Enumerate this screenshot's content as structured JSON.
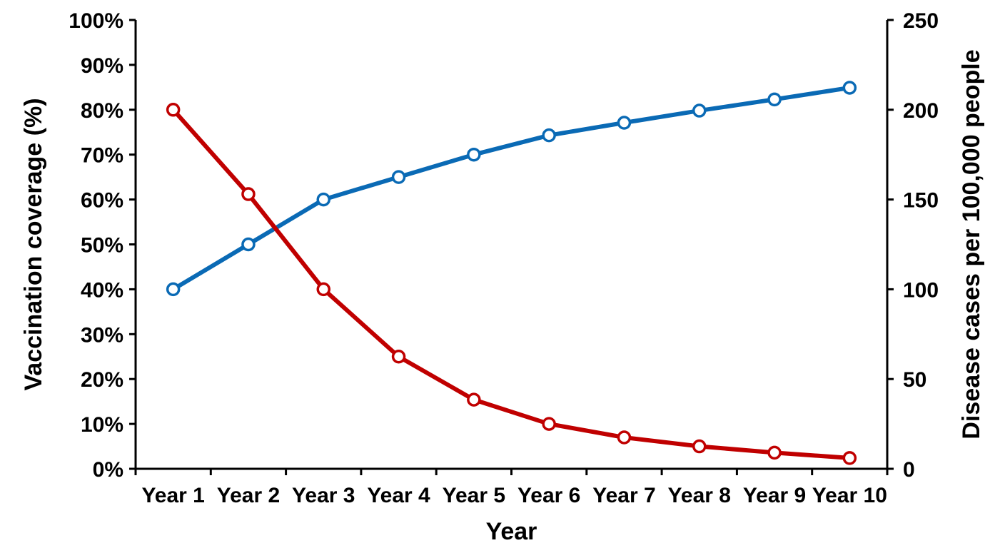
{
  "chart_data": {
    "type": "line",
    "categories": [
      "Year 1",
      "Year 2",
      "Year 3",
      "Year 4",
      "Year 5",
      "Year 6",
      "Year 7",
      "Year 8",
      "Year 9",
      "Year 10"
    ],
    "xlabel": "Year",
    "ylabel_left": "Vaccination coverage (%)",
    "ylabel_right": "Disease cases per 100,000 people",
    "ylim_left": [
      0,
      100
    ],
    "ylim_right": [
      0,
      250
    ],
    "left_ticks": [
      "0%",
      "10%",
      "20%",
      "30%",
      "40%",
      "50%",
      "60%",
      "70%",
      "80%",
      "90%",
      "100%"
    ],
    "right_ticks": [
      "0",
      "50",
      "100",
      "150",
      "200",
      "250"
    ],
    "grid": false,
    "legend": "none",
    "series": [
      {
        "axis": "left",
        "color": "#0a6ab5",
        "values": [
          40,
          50,
          60,
          65,
          70,
          74.3,
          77.1,
          79.8,
          82.3,
          84.9
        ]
      },
      {
        "axis": "right",
        "color": "#c00000",
        "values": [
          200,
          153,
          100,
          62.5,
          38.5,
          25,
          17.5,
          12.5,
          9,
          6
        ]
      }
    ]
  }
}
